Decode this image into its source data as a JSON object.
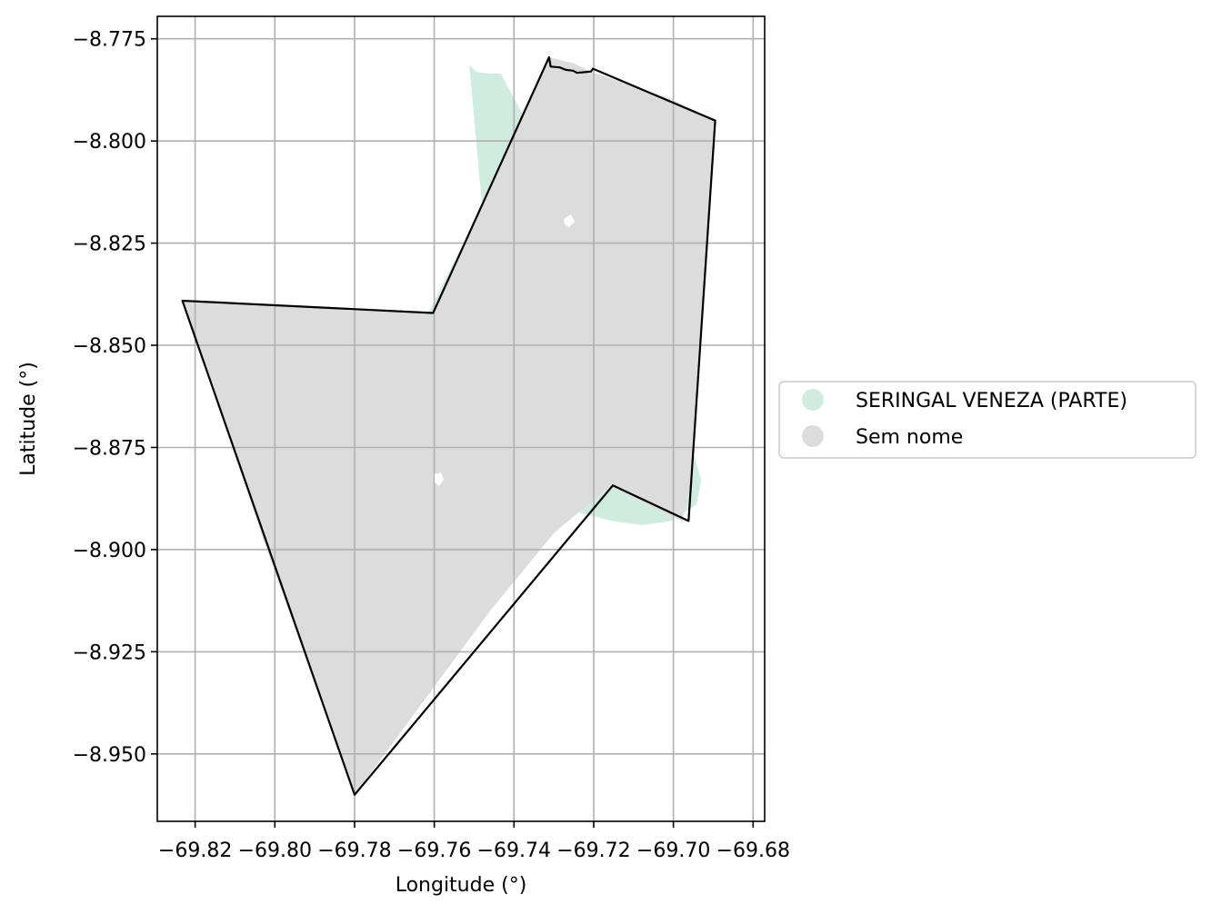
{
  "chart_data": {
    "type": "map",
    "xlabel": "Longitude (°)",
    "ylabel": "Latitude (°)",
    "xlim": [
      -69.8295,
      -69.6771
    ],
    "ylim": [
      -8.9665,
      -8.7695
    ],
    "x_ticks": [
      -69.82,
      -69.8,
      -69.78,
      -69.76,
      -69.74,
      -69.72,
      -69.7,
      -69.68
    ],
    "x_tick_labels": [
      "−69.82",
      "−69.80",
      "−69.78",
      "−69.76",
      "−69.74",
      "−69.72",
      "−69.70",
      "−69.68"
    ],
    "y_ticks": [
      -8.775,
      -8.8,
      -8.825,
      -8.85,
      -8.875,
      -8.9,
      -8.925,
      -8.95
    ],
    "y_tick_labels": [
      "−8.775",
      "−8.800",
      "−8.825",
      "−8.850",
      "−8.875",
      "−8.900",
      "−8.925",
      "−8.950"
    ],
    "grid": true,
    "legend_position": "right, outside axes",
    "outline_color": "#000000",
    "grid_color": "#b0b0b0",
    "series": [
      {
        "name": "SERINGAL VENEZA (PARTE)",
        "color": "#d0ebdf",
        "polygon": [
          [
            -69.7512,
            -8.7815
          ],
          [
            -69.7493,
            -8.7831
          ],
          [
            -69.7465,
            -8.7835
          ],
          [
            -69.7433,
            -8.7835
          ],
          [
            -69.7386,
            -8.792
          ],
          [
            -69.7337,
            -8.802
          ],
          [
            -69.728,
            -8.815
          ],
          [
            -69.72,
            -8.83
          ],
          [
            -69.7118,
            -8.8416
          ],
          [
            -69.7042,
            -8.8515
          ],
          [
            -69.6982,
            -8.864
          ],
          [
            -69.6948,
            -8.877
          ],
          [
            -69.693,
            -8.883
          ],
          [
            -69.6942,
            -8.889
          ],
          [
            -69.7005,
            -8.893
          ],
          [
            -69.708,
            -8.894
          ],
          [
            -69.7155,
            -8.893
          ],
          [
            -69.7235,
            -8.891
          ],
          [
            -69.7281,
            -8.8885
          ],
          [
            -69.733,
            -8.885
          ],
          [
            -69.741,
            -8.878
          ],
          [
            -69.749,
            -8.87
          ],
          [
            -69.756,
            -8.861
          ],
          [
            -69.764,
            -8.853
          ],
          [
            -69.772,
            -8.844
          ],
          [
            -69.773,
            -8.8421
          ],
          [
            -69.7615,
            -8.8421
          ],
          [
            -69.748,
            -8.816
          ]
        ]
      },
      {
        "name": "Sem nome",
        "color": "#dcdcdc",
        "polygon": [
          [
            -69.8232,
            -8.8391
          ],
          [
            -69.7603,
            -8.8421
          ],
          [
            -69.7485,
            -8.8165
          ],
          [
            -69.7397,
            -8.797
          ],
          [
            -69.7312,
            -8.7795
          ],
          [
            -69.725,
            -8.781
          ],
          [
            -69.7207,
            -8.783
          ],
          [
            -69.7012,
            -8.7895
          ],
          [
            -69.6895,
            -8.795
          ],
          [
            -69.6934,
            -8.848
          ],
          [
            -69.696,
            -8.885
          ],
          [
            -69.6978,
            -8.893
          ],
          [
            -69.716,
            -8.8845
          ],
          [
            -69.73,
            -8.896
          ],
          [
            -69.746,
            -8.915
          ],
          [
            -69.78,
            -8.96
          ],
          [
            -69.802,
            -8.9
          ]
        ]
      }
    ]
  },
  "legend": {
    "items": [
      {
        "label": "SERINGAL VENEZA (PARTE)",
        "color": "#d0ebdf"
      },
      {
        "label": "Sem nome",
        "color": "#dcdcdc"
      }
    ]
  },
  "outline": [
    [
      -69.8232,
      -8.8391
    ],
    [
      -69.7603,
      -8.8421
    ],
    [
      -69.7312,
      -8.7795
    ],
    [
      -69.7308,
      -8.7818
    ],
    [
      -69.7285,
      -8.782
    ],
    [
      -69.727,
      -8.7826
    ],
    [
      -69.7252,
      -8.7828
    ],
    [
      -69.7242,
      -8.7833
    ],
    [
      -69.7228,
      -8.7832
    ],
    [
      -69.7207,
      -8.783
    ],
    [
      -69.7202,
      -8.7823
    ],
    [
      -69.6895,
      -8.795
    ],
    [
      -69.6962,
      -8.893
    ],
    [
      -69.7152,
      -8.8843
    ],
    [
      -69.78,
      -8.96
    ]
  ]
}
